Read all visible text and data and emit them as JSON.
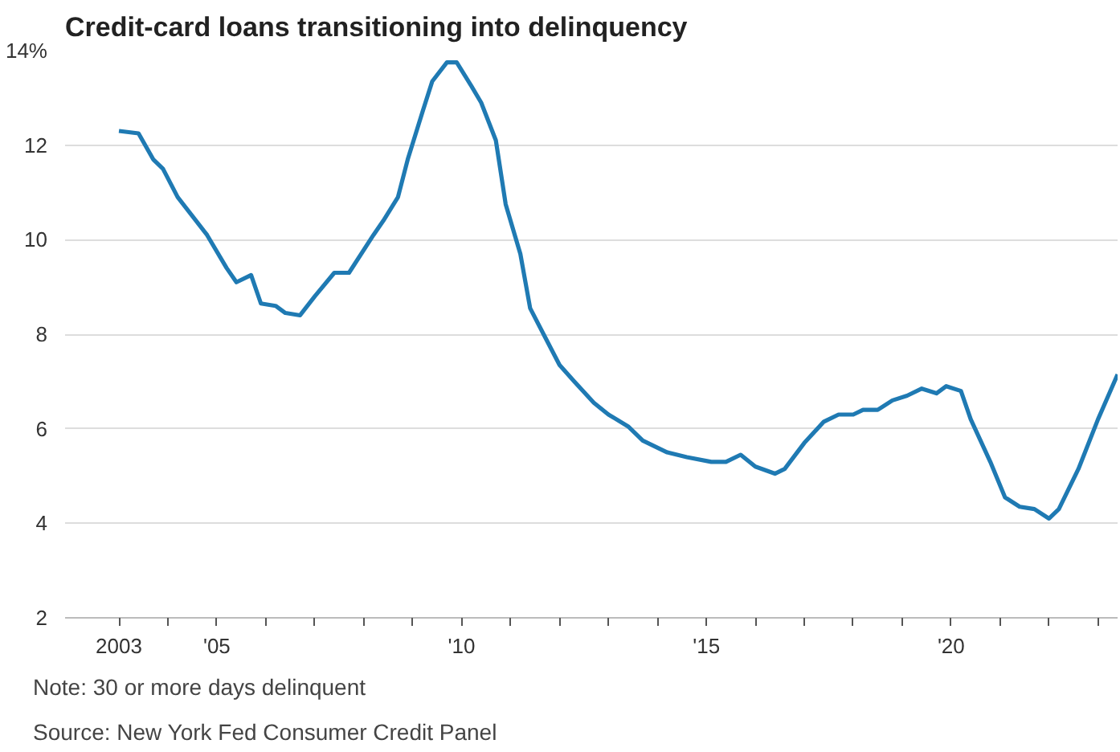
{
  "chart_data": {
    "type": "line",
    "title": "Credit-card loans transitioning into delinquency",
    "annotations": [
      "Note: 30 or more days delinquent",
      "Source: New York Fed Consumer Credit Panel"
    ],
    "x": [
      2003.0,
      2003.4,
      2003.7,
      2003.9,
      2004.2,
      2004.5,
      2004.8,
      2005.2,
      2005.4,
      2005.7,
      2005.9,
      2006.2,
      2006.4,
      2006.7,
      2007.0,
      2007.4,
      2007.7,
      2008.2,
      2008.4,
      2008.7,
      2008.9,
      2009.2,
      2009.4,
      2009.7,
      2009.9,
      2010.2,
      2010.4,
      2010.7,
      2010.9,
      2011.2,
      2011.4,
      2011.7,
      2012.0,
      2012.3,
      2012.7,
      2013.0,
      2013.4,
      2013.7,
      2014.2,
      2014.6,
      2015.1,
      2015.4,
      2015.7,
      2016.0,
      2016.4,
      2016.6,
      2017.0,
      2017.4,
      2017.7,
      2018.0,
      2018.2,
      2018.5,
      2018.8,
      2019.1,
      2019.4,
      2019.7,
      2019.9,
      2020.2,
      2020.4,
      2020.8,
      2021.1,
      2021.4,
      2021.7,
      2022.0,
      2022.2,
      2022.6,
      2023.0,
      2023.4
    ],
    "series": [
      {
        "color": "#1f7ab3",
        "values": [
          12.3,
          12.25,
          11.7,
          11.5,
          10.9,
          10.5,
          10.1,
          9.4,
          9.1,
          9.25,
          8.65,
          8.6,
          8.45,
          8.4,
          8.8,
          9.3,
          9.3,
          10.1,
          10.4,
          10.9,
          11.7,
          12.7,
          13.35,
          13.75,
          13.75,
          13.25,
          12.9,
          12.1,
          10.75,
          9.7,
          8.55,
          7.95,
          7.35,
          7.0,
          6.55,
          6.3,
          6.05,
          5.75,
          5.5,
          5.4,
          5.3,
          5.3,
          5.45,
          5.2,
          5.05,
          5.15,
          5.7,
          6.15,
          6.3,
          6.3,
          6.4,
          6.4,
          6.6,
          6.7,
          6.85,
          6.75,
          6.9,
          6.8,
          6.2,
          5.3,
          4.55,
          4.35,
          4.3,
          4.1,
          4.3,
          5.15,
          6.2,
          7.15
        ]
      }
    ],
    "xlim": [
      2001.9,
      2023.4
    ],
    "xticks": [
      {
        "value": 2003,
        "label": "2003"
      },
      {
        "value": 2004,
        "label": null
      },
      {
        "value": 2005,
        "label": "'05"
      },
      {
        "value": 2006,
        "label": null
      },
      {
        "value": 2007,
        "label": null
      },
      {
        "value": 2008,
        "label": null
      },
      {
        "value": 2009,
        "label": null
      },
      {
        "value": 2010,
        "label": "'10"
      },
      {
        "value": 2011,
        "label": null
      },
      {
        "value": 2012,
        "label": null
      },
      {
        "value": 2013,
        "label": null
      },
      {
        "value": 2014,
        "label": null
      },
      {
        "value": 2015,
        "label": "'15"
      },
      {
        "value": 2016,
        "label": null
      },
      {
        "value": 2017,
        "label": null
      },
      {
        "value": 2018,
        "label": null
      },
      {
        "value": 2019,
        "label": null
      },
      {
        "value": 2020,
        "label": "'20"
      },
      {
        "value": 2021,
        "label": null
      },
      {
        "value": 2022,
        "label": null
      },
      {
        "value": 2023,
        "label": null
      }
    ],
    "ylim": [
      2,
      14
    ],
    "yticks": [
      2,
      4,
      6,
      8,
      10,
      12,
      {
        "value": 14,
        "label": "14%"
      }
    ],
    "grid": "y",
    "marker": "none",
    "line_style": "solid"
  }
}
